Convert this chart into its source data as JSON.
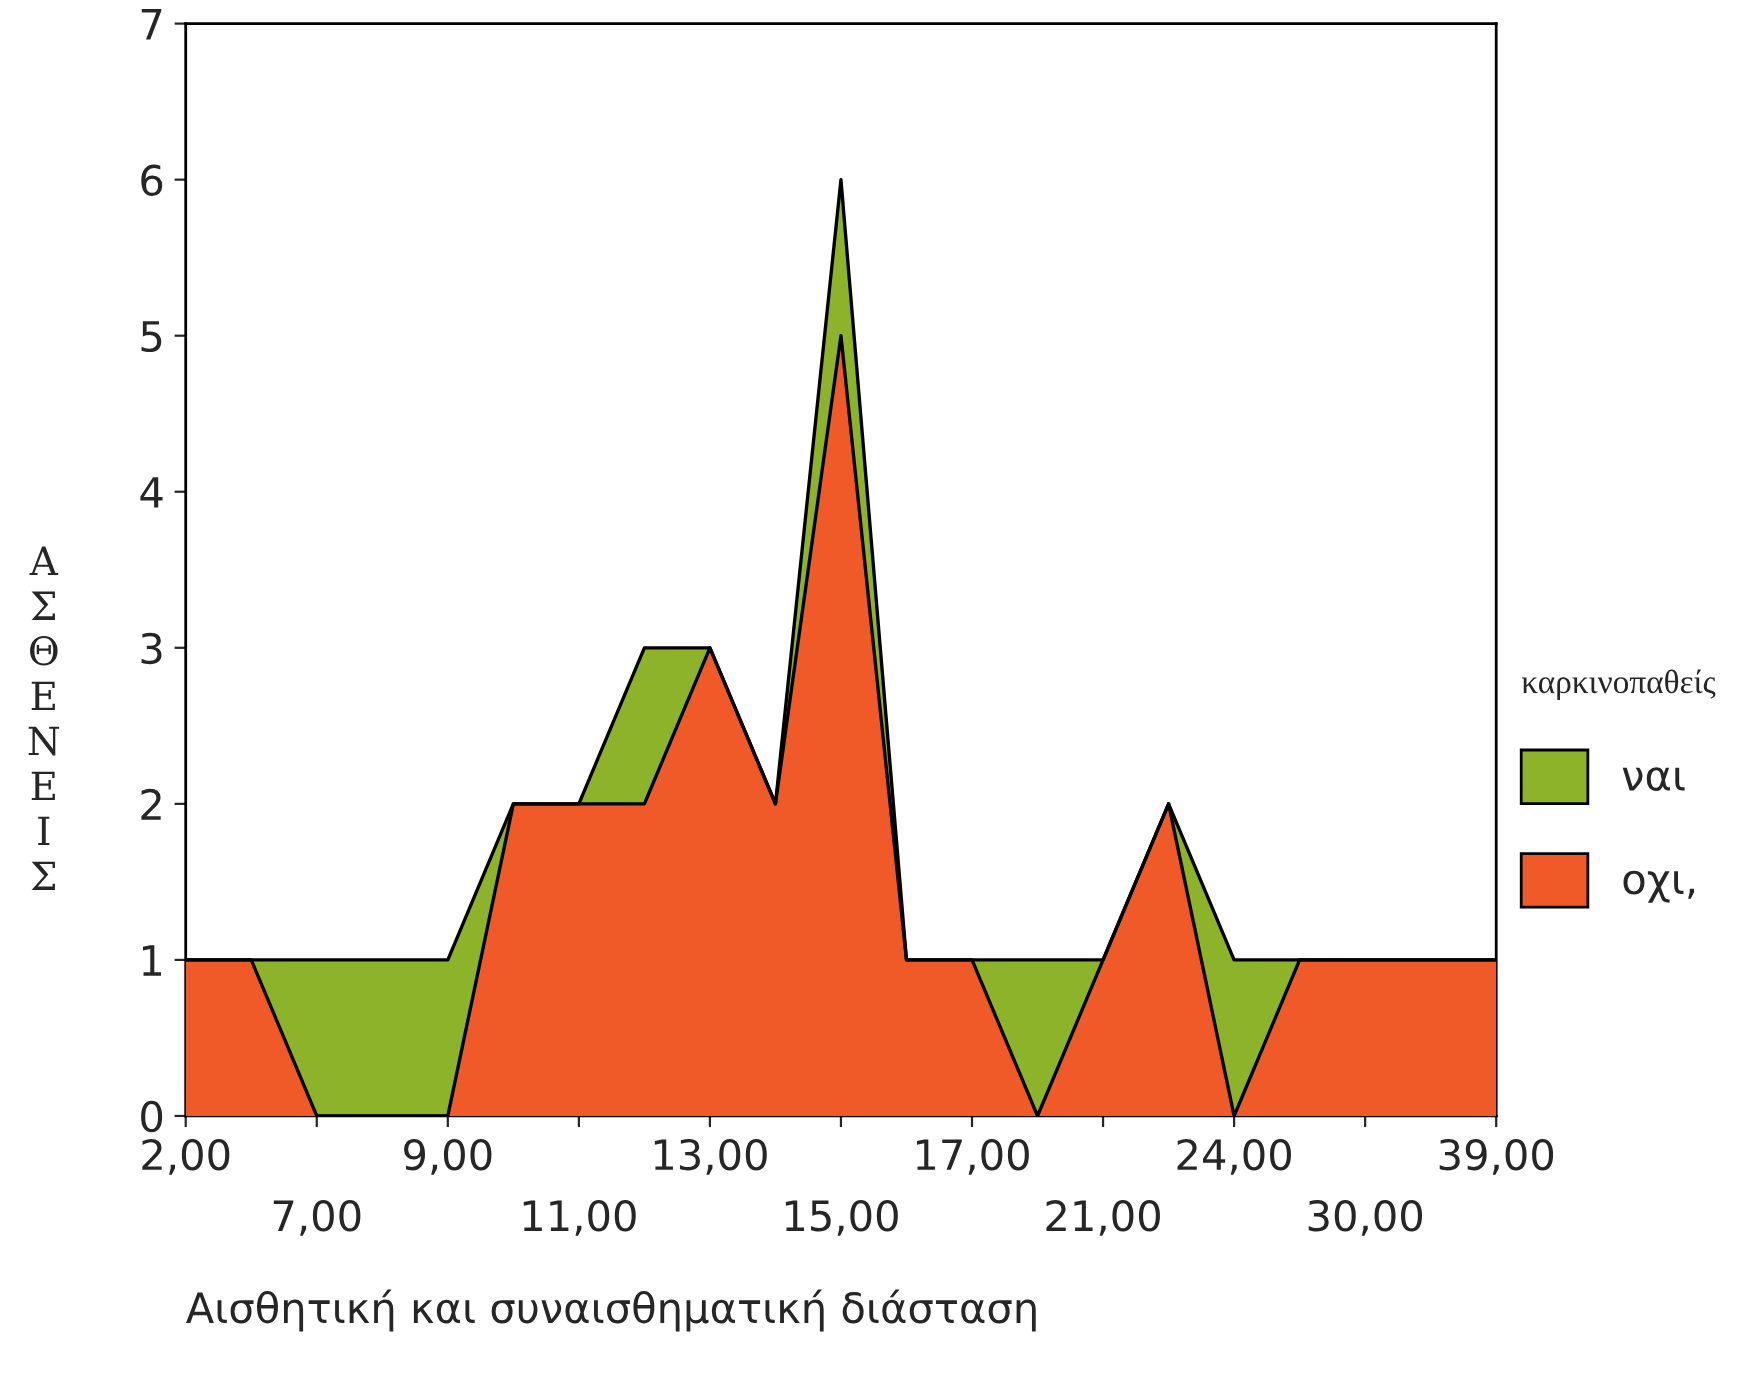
{
  "chart_data": {
    "type": "area",
    "xlabel": "Αισθητική και συναισθηματική διάσταση",
    "ylabel": "ΑΣΘΕΝΕΙΣ",
    "legend_title": "καρκινοπαθείς",
    "legend": "right",
    "categories": [
      "2,00",
      null,
      "7,00",
      null,
      "9,00",
      null,
      "11,00",
      null,
      "13,00",
      null,
      "15,00",
      null,
      "17,00",
      null,
      "21,00",
      null,
      "24,00",
      null,
      "30,00",
      null,
      "39,00"
    ],
    "series": [
      {
        "name": "ναι",
        "color": "#8db32a",
        "values": [
          1,
          1,
          1,
          1,
          1,
          2,
          2,
          3,
          3,
          2,
          6,
          1,
          1,
          1,
          1,
          2,
          1,
          1,
          1,
          1,
          1
        ]
      },
      {
        "name": "οχι,",
        "color": "#f05a28",
        "values": [
          1,
          1,
          0,
          0,
          0,
          2,
          2,
          2,
          3,
          2,
          5,
          1,
          1,
          0,
          1,
          2,
          0,
          1,
          1,
          1,
          1
        ]
      }
    ],
    "ylim": [
      0,
      7
    ],
    "yticks": [
      0,
      1,
      2,
      3,
      4,
      5,
      6,
      7
    ],
    "grid": false
  }
}
